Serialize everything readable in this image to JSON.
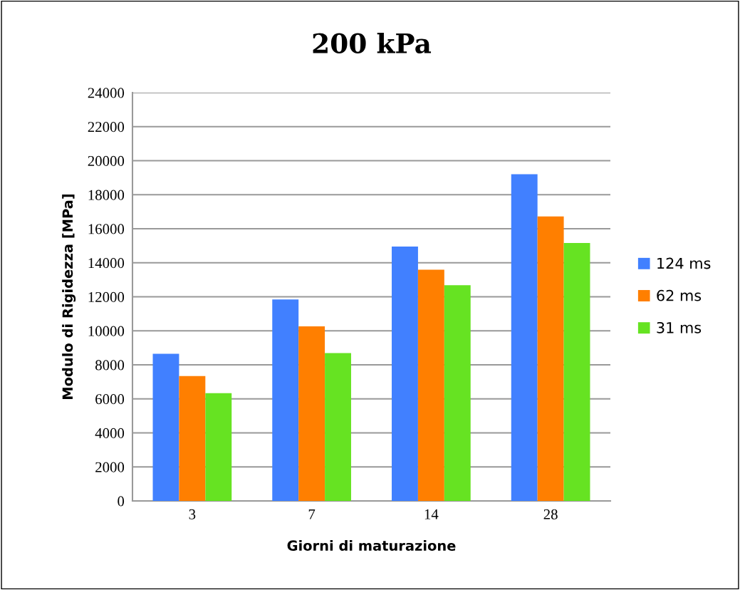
{
  "chart_data": {
    "type": "bar",
    "title": "200 kPa",
    "xlabel": "Giorni di maturazione",
    "ylabel": "Modulo di Rigidezza [MPa]",
    "categories": [
      "3",
      "7",
      "14",
      "28"
    ],
    "series": [
      {
        "name": "124 ms",
        "color": "#4180ff",
        "values": [
          8650,
          11840,
          14950,
          19200
        ]
      },
      {
        "name": "62 ms",
        "color": "#ff7f00",
        "values": [
          7340,
          10260,
          13590,
          16720
        ]
      },
      {
        "name": "31 ms",
        "color": "#66e322",
        "values": [
          6340,
          8690,
          12680,
          15160
        ]
      }
    ],
    "ylim": [
      0,
      24000
    ],
    "yticks": [
      0,
      2000,
      4000,
      6000,
      8000,
      10000,
      12000,
      14000,
      16000,
      18000,
      20000,
      22000,
      24000
    ],
    "grid": "y",
    "legend": "right"
  }
}
